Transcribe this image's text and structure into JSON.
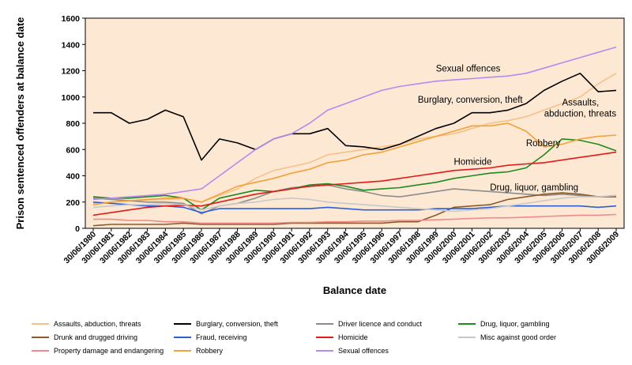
{
  "chart_data": {
    "type": "line",
    "title": "",
    "xlabel": "Balance date",
    "ylabel": "Prison sentenced offenders at balance date",
    "ylim": [
      0,
      1600
    ],
    "yticks": [
      "0",
      "200",
      "400",
      "600",
      "800",
      "1000",
      "1200",
      "1400",
      "1600"
    ],
    "x": [
      "30/06/1980",
      "30/06/1981",
      "30/06/1982",
      "30/06/1983",
      "30/06/1984",
      "30/06/1985",
      "30/06/1986",
      "30/06/1987",
      "30/06/1988",
      "30/06/1989",
      "30/06/1990",
      "30/06/1991",
      "30/06/1992",
      "30/06/1993",
      "30/06/1994",
      "30/06/1995",
      "30/06/1996",
      "30/06/1997",
      "30/06/1998",
      "30/06/1999",
      "30/06/2000",
      "30/06/2001",
      "30/06/2002",
      "30/06/2003",
      "30/06/2004",
      "30/06/2005",
      "30/06/2006",
      "30/06/2007",
      "30/06/2008",
      "30/06/2009"
    ],
    "grid": false,
    "background": "#fde9d3",
    "legend_position": "bottom",
    "series": [
      {
        "name": "Assaults, abduction, threats",
        "color": "#f7c08a",
        "values": [
          190,
          200,
          210,
          215,
          220,
          225,
          200,
          250,
          300,
          380,
          440,
          470,
          500,
          560,
          580,
          600,
          620,
          640,
          680,
          700,
          720,
          760,
          800,
          820,
          850,
          900,
          950,
          1000,
          1100,
          1180
        ]
      },
      {
        "name": "Burglary, conversion, theft",
        "color": "#000000",
        "values": [
          880,
          880,
          800,
          830,
          900,
          850,
          520,
          680,
          650,
          600,
          680,
          720,
          720,
          760,
          630,
          620,
          600,
          640,
          700,
          760,
          800,
          880,
          880,
          900,
          950,
          1050,
          1120,
          1180,
          1040,
          1050
        ]
      },
      {
        "name": "Driver licence and conduct",
        "color": "#8c8c8c",
        "values": [
          230,
          220,
          210,
          200,
          200,
          190,
          110,
          170,
          190,
          230,
          280,
          310,
          320,
          330,
          300,
          280,
          250,
          240,
          260,
          280,
          300,
          290,
          280,
          270,
          260,
          250,
          260,
          250,
          240,
          250
        ]
      },
      {
        "name": "Drug, liquor, gambling",
        "color": "#1f8a1f",
        "values": [
          240,
          230,
          230,
          240,
          250,
          230,
          140,
          230,
          260,
          290,
          280,
          300,
          330,
          340,
          320,
          290,
          300,
          310,
          330,
          350,
          380,
          400,
          420,
          430,
          460,
          560,
          680,
          670,
          640,
          590
        ]
      },
      {
        "name": "Drunk and drugged driving",
        "color": "#8b5a2b",
        "values": [
          20,
          30,
          30,
          30,
          30,
          40,
          30,
          30,
          30,
          30,
          30,
          40,
          40,
          40,
          40,
          40,
          40,
          50,
          50,
          100,
          160,
          170,
          180,
          220,
          240,
          260,
          270,
          260,
          240,
          240
        ]
      },
      {
        "name": "Fraud, receiving",
        "color": "#2a5fd6",
        "values": [
          200,
          190,
          180,
          170,
          170,
          160,
          120,
          150,
          150,
          150,
          150,
          150,
          150,
          160,
          150,
          140,
          140,
          140,
          140,
          150,
          150,
          150,
          160,
          170,
          170,
          170,
          170,
          170,
          160,
          170
        ]
      },
      {
        "name": "Homicide",
        "color": "#e41a1a",
        "values": [
          100,
          120,
          140,
          160,
          170,
          175,
          170,
          200,
          230,
          260,
          280,
          300,
          320,
          330,
          340,
          350,
          360,
          380,
          400,
          420,
          440,
          450,
          460,
          480,
          490,
          500,
          520,
          540,
          560,
          580
        ]
      },
      {
        "name": "Misc against good order",
        "color": "#c8c8c8",
        "values": [
          160,
          170,
          180,
          180,
          190,
          180,
          140,
          170,
          190,
          200,
          220,
          230,
          220,
          200,
          190,
          180,
          170,
          160,
          150,
          140,
          130,
          140,
          150,
          170,
          190,
          210,
          230,
          240,
          240,
          250
        ]
      },
      {
        "name": "Property damage and endangering",
        "color": "#f08a8a",
        "values": [
          70,
          70,
          60,
          60,
          50,
          50,
          40,
          40,
          40,
          40,
          40,
          45,
          45,
          50,
          50,
          55,
          55,
          60,
          60,
          65,
          70,
          75,
          80,
          80,
          85,
          90,
          95,
          100,
          100,
          105
        ]
      },
      {
        "name": "Robbery",
        "color": "#f4a13a",
        "values": [
          180,
          200,
          210,
          220,
          230,
          230,
          200,
          260,
          320,
          350,
          380,
          420,
          450,
          500,
          520,
          560,
          580,
          620,
          660,
          700,
          740,
          780,
          780,
          800,
          740,
          620,
          640,
          680,
          700,
          710
        ]
      },
      {
        "name": "Sexual offences",
        "color": "#b58af0",
        "values": [
          220,
          230,
          240,
          250,
          260,
          280,
          300,
          400,
          500,
          600,
          680,
          720,
          800,
          900,
          950,
          1000,
          1050,
          1080,
          1100,
          1120,
          1130,
          1140,
          1150,
          1160,
          1180,
          1220,
          1260,
          1300,
          1340,
          1380
        ]
      }
    ],
    "annotations": [
      {
        "text": "Sexual offences",
        "x": "30/06/1999",
        "y": 1195
      },
      {
        "text": "Burglary, conversion, theft",
        "x": "30/06/1998",
        "y": 955
      },
      {
        "text": "Assaults,",
        "x": "30/06/2006",
        "y": 935
      },
      {
        "text": "abduction, threats",
        "x": "30/06/2005",
        "y": 850
      },
      {
        "text": "Robbery",
        "x": "30/06/2004",
        "y": 625
      },
      {
        "text": "Homicide",
        "x": "30/06/2000",
        "y": 485
      },
      {
        "text": "Drug, liquor, gambling",
        "x": "30/06/2002",
        "y": 290
      }
    ]
  }
}
